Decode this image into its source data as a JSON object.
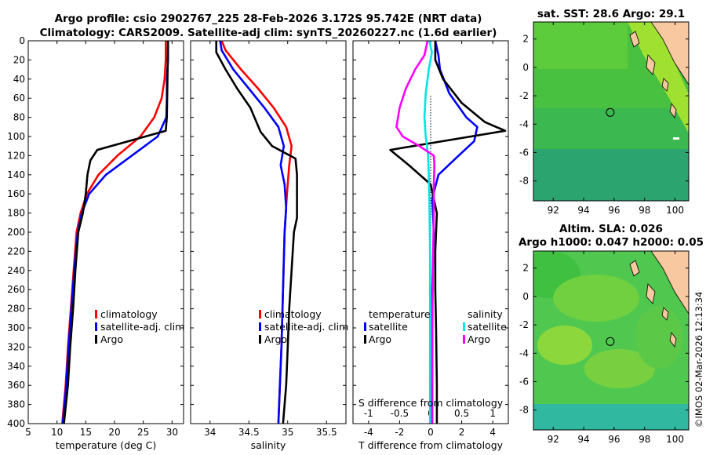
{
  "header": {
    "title_line1": "Argo profile: csio 2902767_225 28-Feb-2026 3.172S 95.742E (NRT data)",
    "title_line2": "Climatology: CARS2009. Satellite-adj clim: synTS_20260227.nc (1.6d earlier)"
  },
  "timestamp": "©IMOS 02-Mar-2026 12:13:34",
  "colors": {
    "climatology": "#ff0000",
    "satellite": "#0000ff",
    "argo": "#000000",
    "salinity_satellite": "#00e5e5",
    "salinity_argo": "#ff00ff",
    "land": "#f8c8a0"
  },
  "chart_data": [
    {
      "id": "temperature",
      "type": "line",
      "xlabel": "temperature (deg C)",
      "ylabel": "",
      "xlim": [
        5,
        32
      ],
      "ylim": [
        0,
        400
      ],
      "y_reversed": true,
      "xticks": [
        5,
        10,
        15,
        20,
        25,
        30
      ],
      "yticks": [
        0,
        20,
        40,
        60,
        80,
        100,
        120,
        140,
        160,
        180,
        200,
        220,
        240,
        260,
        280,
        300,
        320,
        340,
        360,
        380,
        400
      ],
      "legend_position": "lower-right",
      "series": [
        {
          "name": "climatology",
          "color": "#ff0000",
          "points": [
            [
              28.9,
              0
            ],
            [
              28.9,
              20
            ],
            [
              28.7,
              40
            ],
            [
              28.2,
              60
            ],
            [
              26.9,
              80
            ],
            [
              24.5,
              100
            ],
            [
              20.5,
              120
            ],
            [
              17.2,
              140
            ],
            [
              15.2,
              160
            ],
            [
              14.1,
              180
            ],
            [
              13.4,
              200
            ],
            [
              12.9,
              240
            ],
            [
              12.4,
              280
            ],
            [
              11.9,
              320
            ],
            [
              11.5,
              360
            ],
            [
              10.9,
              400
            ]
          ]
        },
        {
          "name": "satellite-adj. clim",
          "color": "#0000ff",
          "points": [
            [
              29.3,
              0
            ],
            [
              29.3,
              20
            ],
            [
              29.1,
              40
            ],
            [
              29.1,
              60
            ],
            [
              29.0,
              80
            ],
            [
              27.5,
              100
            ],
            [
              23.0,
              120
            ],
            [
              18.5,
              140
            ],
            [
              15.6,
              160
            ],
            [
              14.3,
              180
            ],
            [
              13.6,
              200
            ],
            [
              13.0,
              240
            ],
            [
              12.5,
              280
            ],
            [
              12.0,
              320
            ],
            [
              11.6,
              360
            ],
            [
              11.0,
              400
            ]
          ]
        },
        {
          "name": "Argo",
          "color": "#000000",
          "points": [
            [
              29.3,
              0
            ],
            [
              29.2,
              40
            ],
            [
              29.1,
              80
            ],
            [
              28.9,
              94
            ],
            [
              17.0,
              114
            ],
            [
              15.8,
              125
            ],
            [
              15.3,
              140
            ],
            [
              15.0,
              160
            ],
            [
              14.5,
              180
            ],
            [
              13.7,
              200
            ],
            [
              13.2,
              240
            ],
            [
              12.8,
              280
            ],
            [
              12.3,
              320
            ],
            [
              11.9,
              360
            ],
            [
              11.2,
              400
            ]
          ]
        }
      ]
    },
    {
      "id": "salinity",
      "type": "line",
      "xlabel": "salinity",
      "ylabel": "",
      "xlim": [
        33.75,
        35.75
      ],
      "ylim": [
        0,
        400
      ],
      "y_reversed": true,
      "xticks": [
        34,
        34.5,
        35,
        35.5
      ],
      "xticklabels": [
        "34",
        "34.5",
        "35",
        "35.5"
      ],
      "legend_position": "lower-right",
      "series": [
        {
          "name": "climatology",
          "color": "#ff0000",
          "points": [
            [
              34.15,
              0
            ],
            [
              34.2,
              10
            ],
            [
              34.4,
              30
            ],
            [
              34.62,
              50
            ],
            [
              34.82,
              70
            ],
            [
              34.98,
              90
            ],
            [
              35.05,
              110
            ],
            [
              35.02,
              130
            ],
            [
              34.99,
              160
            ],
            [
              34.96,
              200
            ],
            [
              34.94,
              260
            ],
            [
              34.92,
              320
            ],
            [
              34.9,
              360
            ],
            [
              34.88,
              400
            ]
          ]
        },
        {
          "name": "satellite-adj. clim",
          "color": "#0000ff",
          "points": [
            [
              34.13,
              0
            ],
            [
              34.15,
              10
            ],
            [
              34.3,
              30
            ],
            [
              34.5,
              50
            ],
            [
              34.7,
              70
            ],
            [
              34.88,
              90
            ],
            [
              34.95,
              110
            ],
            [
              34.91,
              130
            ],
            [
              34.96,
              150
            ],
            [
              34.98,
              175
            ],
            [
              34.96,
              200
            ],
            [
              34.94,
              260
            ],
            [
              34.92,
              320
            ],
            [
              34.9,
              360
            ],
            [
              34.88,
              400
            ]
          ]
        },
        {
          "name": "Argo",
          "color": "#000000",
          "points": [
            [
              34.08,
              0
            ],
            [
              34.08,
              12
            ],
            [
              34.2,
              30
            ],
            [
              34.35,
              50
            ],
            [
              34.52,
              70
            ],
            [
              34.65,
              95
            ],
            [
              34.8,
              110
            ],
            [
              35.1,
              123
            ],
            [
              35.12,
              140
            ],
            [
              35.12,
              170
            ],
            [
              35.12,
              185
            ],
            [
              35.08,
              200
            ],
            [
              35.05,
              240
            ],
            [
              35.02,
              280
            ],
            [
              35.0,
              320
            ],
            [
              34.98,
              360
            ],
            [
              34.94,
              400
            ]
          ]
        }
      ]
    },
    {
      "id": "difference",
      "type": "line",
      "xlabel": "T difference from climatology",
      "top_xlabel": "S difference from climatology",
      "xlim": [
        -5,
        5
      ],
      "top_xlim": [
        -1.25,
        1.25
      ],
      "ylim": [
        0,
        400
      ],
      "y_reversed": true,
      "xticks": [
        -4,
        -2,
        0,
        2,
        4
      ],
      "top_xticks": [
        -1,
        -0.5,
        0,
        0.5,
        1
      ],
      "top_xticklabels": [
        "-1",
        "-0.5",
        "0",
        "0.5",
        "1"
      ],
      "zero_line": "dotted",
      "legend_position": "lower-center",
      "legend_headers": {
        "temperature": "temperature",
        "salinity": "salinity"
      },
      "series": [
        {
          "name": "satellite",
          "group": "temperature",
          "axis": "T",
          "color": "#0000ff",
          "points": [
            [
              0.3,
              0
            ],
            [
              0.5,
              15
            ],
            [
              0.6,
              30
            ],
            [
              1.2,
              55
            ],
            [
              2.3,
              80
            ],
            [
              3.0,
              90
            ],
            [
              2.8,
              105
            ],
            [
              1.8,
              120
            ],
            [
              0.5,
              140
            ],
            [
              0.1,
              165
            ],
            [
              0.2,
              200
            ],
            [
              0.1,
              260
            ],
            [
              0.1,
              320
            ],
            [
              0.1,
              400
            ]
          ]
        },
        {
          "name": "Argo",
          "group": "temperature",
          "axis": "T",
          "color": "#000000",
          "points": [
            [
              0.3,
              0
            ],
            [
              0.3,
              20
            ],
            [
              0.8,
              40
            ],
            [
              2.0,
              65
            ],
            [
              3.5,
              85
            ],
            [
              4.8,
              94
            ],
            [
              -2.6,
              114
            ],
            [
              -1.4,
              130
            ],
            [
              0.0,
              150
            ],
            [
              0.4,
              180
            ],
            [
              0.3,
              220
            ],
            [
              0.3,
              260
            ],
            [
              0.35,
              300
            ],
            [
              0.4,
              360
            ],
            [
              0.4,
              400
            ]
          ]
        },
        {
          "name": "satellite",
          "group": "salinity",
          "axis": "S",
          "color": "#00e5e5",
          "points": [
            [
              -0.02,
              0
            ],
            [
              0.02,
              12
            ],
            [
              -0.03,
              30
            ],
            [
              -0.08,
              55
            ],
            [
              -0.1,
              80
            ],
            [
              -0.08,
              100
            ],
            [
              -0.04,
              120
            ],
            [
              -0.03,
              140
            ],
            [
              -0.02,
              170
            ],
            [
              -0.01,
              220
            ],
            [
              -0.01,
              300
            ],
            [
              -0.01,
              400
            ]
          ]
        },
        {
          "name": "Argo",
          "group": "salinity",
          "axis": "S",
          "color": "#ff00ff",
          "points": [
            [
              -0.05,
              0
            ],
            [
              -0.1,
              15
            ],
            [
              -0.25,
              30
            ],
            [
              -0.4,
              50
            ],
            [
              -0.5,
              70
            ],
            [
              -0.55,
              90
            ],
            [
              -0.45,
              100
            ],
            [
              -0.18,
              110
            ],
            [
              0.05,
              120
            ],
            [
              0.06,
              130
            ],
            [
              0.05,
              150
            ],
            [
              0.05,
              180
            ],
            [
              0.04,
              220
            ],
            [
              0.03,
              280
            ],
            [
              0.02,
              360
            ],
            [
              0.02,
              400
            ]
          ]
        }
      ]
    },
    {
      "id": "sst_map",
      "type": "heatmap",
      "title": "sat. SST: 28.6 Argo: 29.1",
      "xlim": [
        90.7,
        100.9
      ],
      "ylim": [
        -9.4,
        3.2
      ],
      "xticks": [
        92,
        94,
        96,
        98,
        100
      ],
      "yticks": [
        2,
        0,
        -2,
        -4,
        -6,
        -8
      ],
      "marker": {
        "lon": 95.742,
        "lat": -3.172
      }
    },
    {
      "id": "sla_map",
      "type": "heatmap",
      "title_line1": "Altim. SLA: 0.026",
      "title_line2": "Argo h1000: 0.047 h2000: 0.05",
      "xlim": [
        90.7,
        100.9
      ],
      "ylim": [
        -9.4,
        3.2
      ],
      "xticks": [
        92,
        94,
        96,
        98,
        100
      ],
      "yticks": [
        2,
        0,
        -2,
        -4,
        -6,
        -8
      ],
      "marker": {
        "lon": 95.742,
        "lat": -3.172
      }
    }
  ]
}
